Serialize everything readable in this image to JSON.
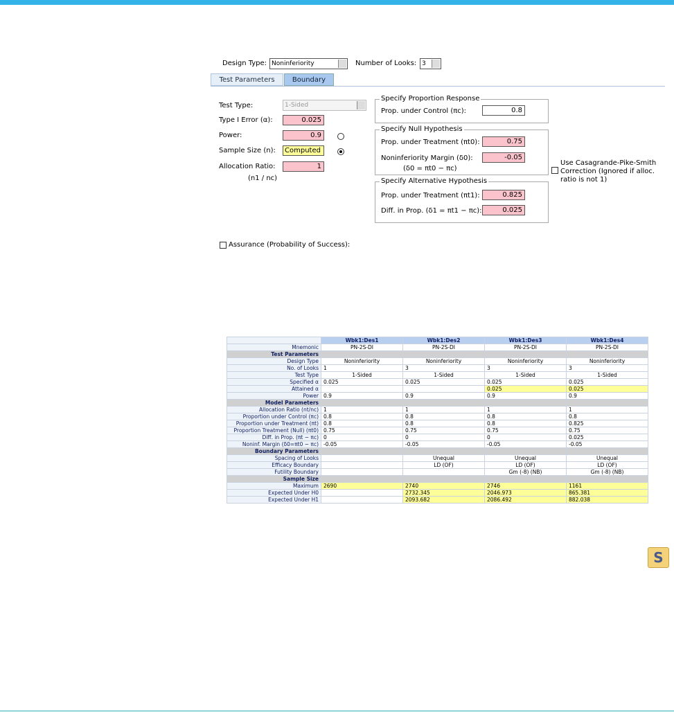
{
  "header": {
    "design_type_label": "Design Type:",
    "design_type": "Noninferiority",
    "looks_label": "Number of Looks:",
    "looks": "3"
  },
  "tabs": [
    "Test Parameters",
    "Boundary"
  ],
  "form": {
    "test_type_label": "Test Type:",
    "test_type": "1-Sided",
    "alpha_label": "Type I Error (α):",
    "alpha": "0.025",
    "power_label": "Power:",
    "power": "0.9",
    "n_label": "Sample Size (n):",
    "n": "Computed",
    "alloc_label": "Allocation Ratio:",
    "alloc": "1",
    "alloc_note": "(n1 / nc)"
  },
  "groups": [
    {
      "title": "Specify Proportion Response",
      "fields": [
        {
          "label": "Prop. under Control (πc):",
          "value": "0.8"
        }
      ]
    },
    {
      "title": "Specify Null Hypothesis",
      "fields": [
        {
          "label": "Prop. under Treatment (πt0):",
          "value": "0.75"
        },
        {
          "label": "Noninferiority Margin (δ0):",
          "value": "-0.05",
          "note": "(δ0 = πt0 − πc)"
        }
      ]
    },
    {
      "title": "Specify Alternative Hypothesis",
      "fields": [
        {
          "label": "Prop. under Treatment (πt1):",
          "value": "0.825"
        },
        {
          "label": "Diff. in Prop. (δ1 = πt1 − πc):",
          "value": "0.025"
        }
      ]
    }
  ],
  "cps_label": "Use Casagrande-Pike-Smith Correction (Ignored if alloc. ratio is not 1)",
  "assurance_label": "Assurance (Probability of Success):",
  "table": {
    "columns": [
      "Wbk1:Des1",
      "Wbk1:Des2",
      "Wbk1:Des3",
      "Wbk1:Des4"
    ],
    "rows": [
      {
        "label": "Mnemonic",
        "cells": [
          "PN-2S-DI",
          "PN-2S-DI",
          "PN-2S-DI",
          "PN-2S-DI"
        ]
      },
      {
        "section": "Test Parameters"
      },
      {
        "label": "Design Type",
        "cells": [
          "Noninferiority",
          "Noninferiority",
          "Noninferiority",
          "Noninferiority"
        ]
      },
      {
        "label": "No. of Looks",
        "cells": [
          "1",
          "3",
          "3",
          "3"
        ]
      },
      {
        "label": "Test Type",
        "cells": [
          "1-Sided",
          "1-Sided",
          "1-Sided",
          "1-Sided"
        ]
      },
      {
        "label": "Specified α",
        "cells": [
          "0.025",
          "0.025",
          "0.025",
          "0.025"
        ]
      },
      {
        "label": "Attained α",
        "cells": [
          null,
          null,
          "0.025",
          "0.025"
        ]
      },
      {
        "label": "Power",
        "cells": [
          "0.9",
          "0.9",
          "0.9",
          "0.9"
        ]
      },
      {
        "section": "Model Parameters"
      },
      {
        "label": "Allocation Ratio (nt/nc)",
        "cells": [
          "1",
          "1",
          "1",
          "1"
        ]
      },
      {
        "label": "Proportion under Control (πc)",
        "cells": [
          "0.8",
          "0.8",
          "0.8",
          "0.8"
        ]
      },
      {
        "label": "Proportion under Treatment (πt)",
        "cells": [
          "0.8",
          "0.8",
          "0.8",
          "0.825"
        ]
      },
      {
        "label": "Proportion Treatment (Null) (πt0)",
        "cells": [
          "0.75",
          "0.75",
          "0.75",
          "0.75"
        ]
      },
      {
        "label": "Diff. in Prop. (πt − πc)",
        "cells": [
          "0",
          "0",
          "0",
          "0.025"
        ]
      },
      {
        "label": "Noninf. Margin (δ0=πt0 − πc)",
        "cells": [
          "-0.05",
          "-0.05",
          "-0.05",
          "-0.05"
        ]
      },
      {
        "section": "Boundary Parameters"
      },
      {
        "label": "Spacing of Looks",
        "cells": [
          null,
          "Unequal",
          "Unequal",
          "Unequal"
        ]
      },
      {
        "label": "Efficacy Boundary",
        "cells": [
          null,
          "LD (OF)",
          "LD (OF)",
          "LD (OF)"
        ]
      },
      {
        "label": "Futility Boundary",
        "cells": [
          null,
          null,
          "Gm (-8) (NB)",
          "Gm (-8) (NB)"
        ]
      },
      {
        "section": "Sample Size"
      },
      {
        "label": "Maximum",
        "cells": [
          "2690",
          "2740",
          "2746",
          "1161"
        ]
      },
      {
        "label": "Expected Under H0",
        "cells": [
          null,
          "2732.345",
          "2046.973",
          "865.381"
        ]
      },
      {
        "label": "Expected Under H1",
        "cells": [
          null,
          "2093.682",
          "2086.492",
          "882.038"
        ]
      }
    ]
  },
  "icon": "S"
}
